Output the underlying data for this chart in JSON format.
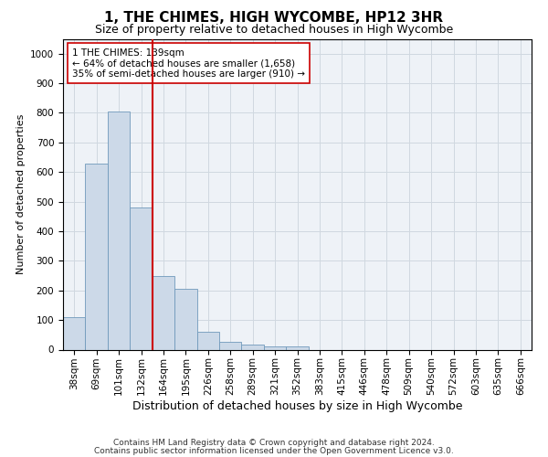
{
  "title": "1, THE CHIMES, HIGH WYCOMBE, HP12 3HR",
  "subtitle": "Size of property relative to detached houses in High Wycombe",
  "xlabel": "Distribution of detached houses by size in High Wycombe",
  "ylabel": "Number of detached properties",
  "categories": [
    "38sqm",
    "69sqm",
    "101sqm",
    "132sqm",
    "164sqm",
    "195sqm",
    "226sqm",
    "258sqm",
    "289sqm",
    "321sqm",
    "352sqm",
    "383sqm",
    "415sqm",
    "446sqm",
    "478sqm",
    "509sqm",
    "540sqm",
    "572sqm",
    "603sqm",
    "635sqm",
    "666sqm"
  ],
  "values": [
    110,
    630,
    805,
    480,
    250,
    205,
    60,
    25,
    17,
    10,
    10,
    0,
    0,
    0,
    0,
    0,
    0,
    0,
    0,
    0,
    0
  ],
  "bar_color": "#ccd9e8",
  "bar_edge_color": "#7099bb",
  "vline_x": 3.5,
  "vline_color": "#cc0000",
  "annotation_line1": "1 THE CHIMES: 139sqm",
  "annotation_line2": "← 64% of detached houses are smaller (1,658)",
  "annotation_line3": "35% of semi-detached houses are larger (910) →",
  "annotation_box_color": "#ffffff",
  "annotation_box_edge": "#cc0000",
  "ylim": [
    0,
    1050
  ],
  "yticks": [
    0,
    100,
    200,
    300,
    400,
    500,
    600,
    700,
    800,
    900,
    1000
  ],
  "grid_color": "#d0d8e0",
  "plot_bg_color": "#eef2f7",
  "footer1": "Contains HM Land Registry data © Crown copyright and database right 2024.",
  "footer2": "Contains public sector information licensed under the Open Government Licence v3.0.",
  "title_fontsize": 11,
  "subtitle_fontsize": 9,
  "xlabel_fontsize": 9,
  "ylabel_fontsize": 8,
  "tick_fontsize": 7.5,
  "annot_fontsize": 7.5,
  "footer_fontsize": 6.5
}
